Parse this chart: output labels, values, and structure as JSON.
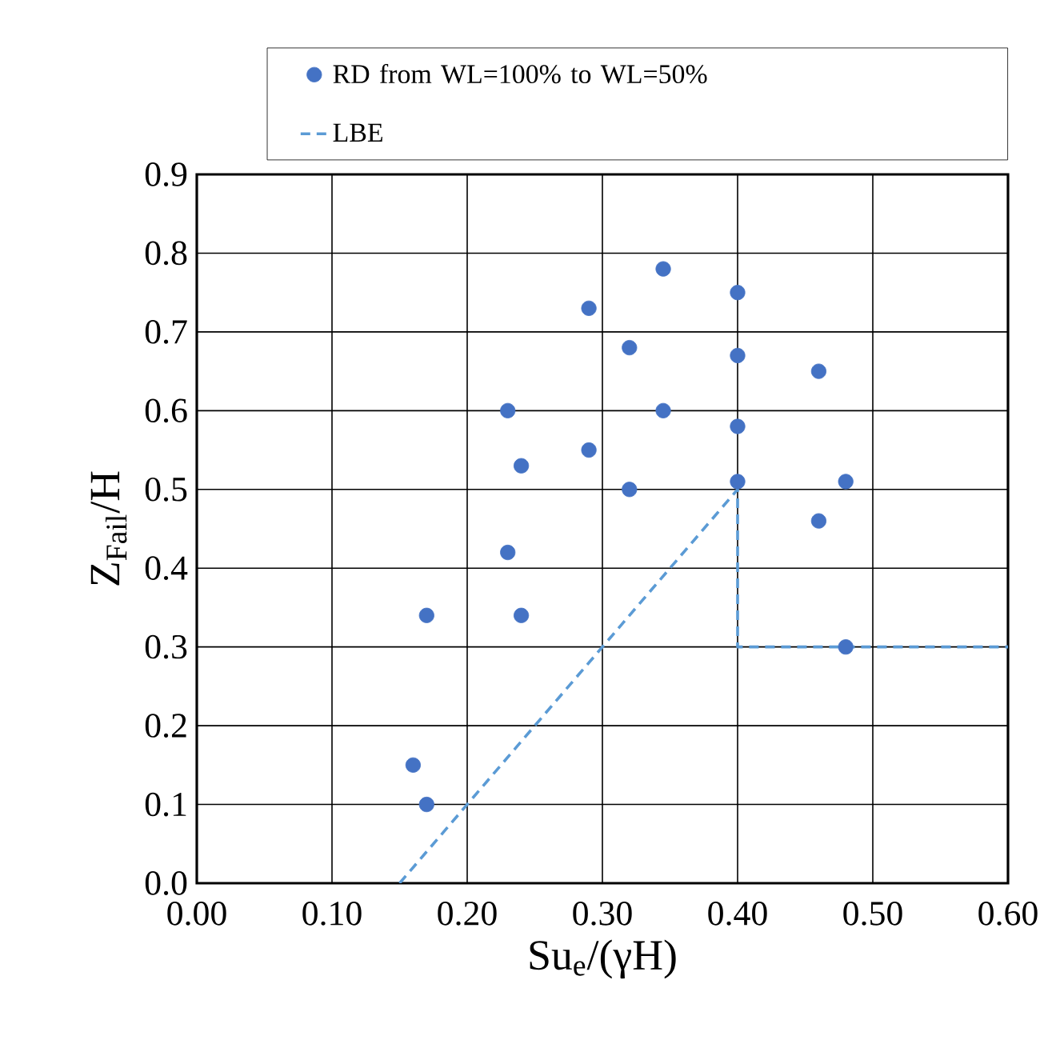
{
  "chart_data": {
    "type": "scatter",
    "xlabel": "Su$_{e}$/(γH)",
    "ylabel": "Z$_{Fail}$/H",
    "xlim": [
      0,
      0.6
    ],
    "ylim": [
      0,
      0.9
    ],
    "xticks": [
      {
        "value": 0,
        "label": "0.00"
      },
      {
        "value": 0.1,
        "label": "0.10"
      },
      {
        "value": 0.2,
        "label": "0.20"
      },
      {
        "value": 0.3,
        "label": "0.30"
      },
      {
        "value": 0.4,
        "label": "0.40"
      },
      {
        "value": 0.5,
        "label": "0.50"
      },
      {
        "value": 0.6,
        "label": "0.60"
      }
    ],
    "yticks": [
      {
        "value": 0,
        "label": "0.0"
      },
      {
        "value": 0.1,
        "label": "0.1"
      },
      {
        "value": 0.2,
        "label": "0.2"
      },
      {
        "value": 0.3,
        "label": "0.3"
      },
      {
        "value": 0.4,
        "label": "0.4"
      },
      {
        "value": 0.5,
        "label": "0.5"
      },
      {
        "value": 0.6,
        "label": "0.6"
      },
      {
        "value": 0.7,
        "label": "0.7"
      },
      {
        "value": 0.8,
        "label": "0.8"
      },
      {
        "value": 0.9,
        "label": "0.9"
      }
    ],
    "grid": true,
    "legend": "top",
    "series": [
      {
        "name": "RD from WL=100% to WL=50%",
        "color": "#4472c4",
        "marker": "circle",
        "x": [
          0.29,
          0.23,
          0.29,
          0.24,
          0.23,
          0.17,
          0.24,
          0.16,
          0.17,
          0.345,
          0.4,
          0.32,
          0.4,
          0.46,
          0.345,
          0.4,
          0.4,
          0.48,
          0.32,
          0.46,
          0.48
        ],
        "values": [
          0.73,
          0.6,
          0.55,
          0.53,
          0.42,
          0.34,
          0.34,
          0.15,
          0.1,
          0.78,
          0.75,
          0.68,
          0.67,
          0.65,
          0.6,
          0.58,
          0.51,
          0.51,
          0.5,
          0.46,
          0.3
        ]
      },
      {
        "name": "LBE",
        "type": "line",
        "color": "#5b9bd5",
        "marker": "none",
        "line_style": "dashed",
        "x": [
          0.15,
          0.4,
          0.4,
          0.6
        ],
        "values": [
          0,
          0.5,
          0.3,
          0.3
        ]
      }
    ]
  }
}
